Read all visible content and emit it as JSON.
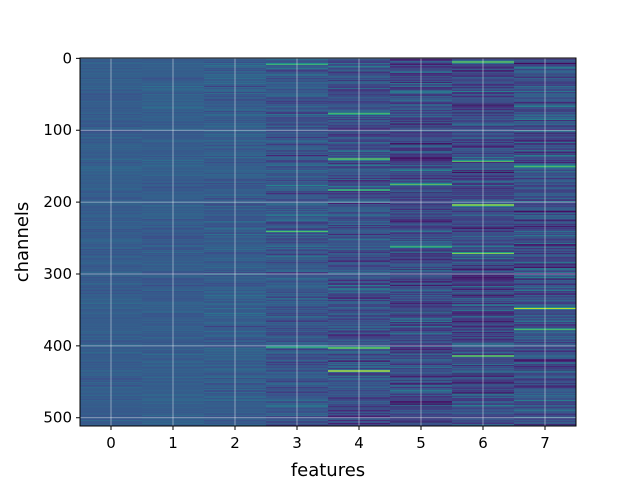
{
  "chart_data": {
    "type": "heatmap",
    "title": "",
    "xlabel": "features",
    "ylabel": "channels",
    "x_ticks": [
      "0",
      "1",
      "2",
      "3",
      "4",
      "5",
      "6",
      "7"
    ],
    "y_ticks": [
      "0",
      "100",
      "200",
      "300",
      "400",
      "500"
    ],
    "x_range": [
      -0.5,
      7.5
    ],
    "y_range": [
      -0.5,
      511.5
    ],
    "rows": 512,
    "columns": 8,
    "colormap": "viridis",
    "grid": true,
    "column_spread": [
      0.04,
      0.05,
      0.07,
      0.11,
      0.13,
      0.15,
      0.16,
      0.16
    ],
    "column_base": [
      0.3,
      0.3,
      0.3,
      0.28,
      0.25,
      0.23,
      0.24,
      0.25
    ],
    "highlights": [
      {
        "feature": 3,
        "channel": 8,
        "value": 0.75
      },
      {
        "feature": 3,
        "channel": 241,
        "value": 0.72
      },
      {
        "feature": 3,
        "channel": 402,
        "value": 0.7
      },
      {
        "feature": 4,
        "channel": 77,
        "value": 0.78
      },
      {
        "feature": 4,
        "channel": 140,
        "value": 0.8
      },
      {
        "feature": 4,
        "channel": 183,
        "value": 0.72
      },
      {
        "feature": 4,
        "channel": 403,
        "value": 0.82
      },
      {
        "feature": 4,
        "channel": 435,
        "value": 0.98
      },
      {
        "feature": 4,
        "channel": 498,
        "value": 0.05
      },
      {
        "feature": 5,
        "channel": 2,
        "value": 0.05
      },
      {
        "feature": 5,
        "channel": 175,
        "value": 0.85
      },
      {
        "feature": 5,
        "channel": 139,
        "value": 0.02
      },
      {
        "feature": 5,
        "channel": 262,
        "value": 0.75
      },
      {
        "feature": 6,
        "channel": 5,
        "value": 0.8
      },
      {
        "feature": 6,
        "channel": 143,
        "value": 0.85
      },
      {
        "feature": 6,
        "channel": 204,
        "value": 0.92
      },
      {
        "feature": 6,
        "channel": 271,
        "value": 0.95
      },
      {
        "feature": 6,
        "channel": 414,
        "value": 0.82
      },
      {
        "feature": 6,
        "channel": 18,
        "value": 0.05
      },
      {
        "feature": 7,
        "channel": 7,
        "value": 0.03
      },
      {
        "feature": 7,
        "channel": 150,
        "value": 0.8
      },
      {
        "feature": 7,
        "channel": 213,
        "value": 0.04
      },
      {
        "feature": 7,
        "channel": 348,
        "value": 0.9
      },
      {
        "feature": 7,
        "channel": 377,
        "value": 0.8
      },
      {
        "feature": 7,
        "channel": 420,
        "value": 0.04
      }
    ]
  }
}
